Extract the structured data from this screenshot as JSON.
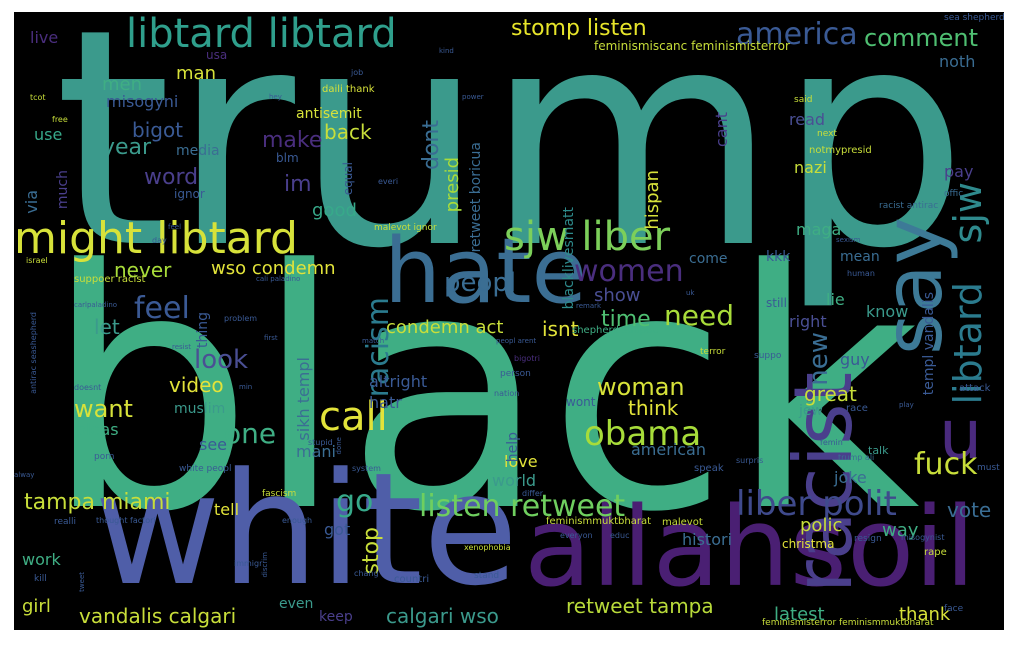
{
  "words": [
    {
      "text": "trump",
      "color": "#3b9a8c"
    },
    {
      "text": "black",
      "color": "#3fae84"
    },
    {
      "text": "white",
      "color": "#4f5ea8"
    },
    {
      "text": "allahsoil",
      "color": "#4a1f73"
    },
    {
      "text": "hate",
      "color": "#3b6e93"
    },
    {
      "text": "racist",
      "color": "#4a3f8c"
    },
    {
      "text": "say",
      "color": "#3d7a97"
    },
    {
      "text": "libtard libtard",
      "color": "#2f9f8c"
    },
    {
      "text": "libtard",
      "color": "#2b7b8e"
    },
    {
      "text": "sjw",
      "color": "#2f8a8d"
    },
    {
      "text": "u",
      "color": "#4a2a7e"
    },
    {
      "text": "might libtard",
      "color": "#d7e23a"
    },
    {
      "text": "sjw liber",
      "color": "#7ccf5a"
    },
    {
      "text": "liber polit",
      "color": "#3f4a8c"
    },
    {
      "text": "listen retweet",
      "color": "#6fcf5f"
    },
    {
      "text": "obama",
      "color": "#a7dc3a"
    },
    {
      "text": "women",
      "color": "#4a2e7e"
    },
    {
      "text": "america",
      "color": "#3a5a95"
    },
    {
      "text": "stomp listen",
      "color": "#e7e52a"
    },
    {
      "text": "comment",
      "color": "#4fbf72"
    },
    {
      "text": "call",
      "color": "#e2e33a"
    },
    {
      "text": "fuck",
      "color": "#c8de3a"
    },
    {
      "text": "go",
      "color": "#37a98a"
    },
    {
      "text": "peopl",
      "color": "#3a6d93"
    },
    {
      "text": "need",
      "color": "#a8dc3a"
    },
    {
      "text": "feel",
      "color": "#3b5a95"
    },
    {
      "text": "racism",
      "color": "#2b7b8e"
    },
    {
      "text": "woman",
      "color": "#d7e23a"
    },
    {
      "text": "one",
      "color": "#3fae84"
    },
    {
      "text": "look",
      "color": "#4a4f94"
    },
    {
      "text": "want",
      "color": "#d7e23a"
    },
    {
      "text": "tampa miami",
      "color": "#c8de3a"
    },
    {
      "text": "stop",
      "color": "#c8de3a"
    },
    {
      "text": "retweet tampa",
      "color": "#b8da3a"
    },
    {
      "text": "vandalis calgari",
      "color": "#c8de3a"
    },
    {
      "text": "calgari wso",
      "color": "#3b9a8c"
    },
    {
      "text": "latest",
      "color": "#3fae84"
    },
    {
      "text": "thank",
      "color": "#d7e23a"
    },
    {
      "text": "vote",
      "color": "#3a6d93"
    },
    {
      "text": "new",
      "color": "#3a6d93"
    },
    {
      "text": "time",
      "color": "#4fbf72"
    },
    {
      "text": "show",
      "color": "#4a4f94"
    },
    {
      "text": "condemn act",
      "color": "#c8de3a"
    },
    {
      "text": "isnt",
      "color": "#e2e33a"
    },
    {
      "text": "wso condemn",
      "color": "#e2e33a"
    },
    {
      "text": "never",
      "color": "#a8dc3a"
    },
    {
      "text": "let",
      "color": "#3b9a8c"
    },
    {
      "text": "video",
      "color": "#e2e33a"
    },
    {
      "text": "think",
      "color": "#e2e33a"
    },
    {
      "text": "great",
      "color": "#c8de3a"
    },
    {
      "text": "word",
      "color": "#4a3f8c"
    },
    {
      "text": "year",
      "color": "#3b9a8c"
    },
    {
      "text": "bigot",
      "color": "#3a5a95"
    },
    {
      "text": "make",
      "color": "#4a2e7e"
    },
    {
      "text": "im",
      "color": "#4a3f8c"
    },
    {
      "text": "back",
      "color": "#c8de3a"
    },
    {
      "text": "dont",
      "color": "#3a6d93"
    },
    {
      "text": "presid",
      "color": "#a8dc3a"
    },
    {
      "text": "hispan",
      "color": "#d7e23a"
    },
    {
      "text": "nazi",
      "color": "#c8de3a"
    },
    {
      "text": "pay",
      "color": "#4a3f8c"
    },
    {
      "text": "read",
      "color": "#4a4f94"
    },
    {
      "text": "noth",
      "color": "#3a6d93"
    },
    {
      "text": "good",
      "color": "#37a98a"
    },
    {
      "text": "via",
      "color": "#3a6d93"
    },
    {
      "text": "men",
      "color": "#3fae84"
    },
    {
      "text": "man",
      "color": "#d7e23a"
    },
    {
      "text": "misogyni",
      "color": "#3a5a95"
    },
    {
      "text": "media",
      "color": "#3b6e93"
    },
    {
      "text": "use",
      "color": "#37a98a"
    },
    {
      "text": "much",
      "color": "#4a3f8c"
    },
    {
      "text": "live",
      "color": "#4a2e7e"
    },
    {
      "text": "usa",
      "color": "#4a2e7e"
    },
    {
      "text": "cant",
      "color": "#4a3f8c"
    },
    {
      "text": "mean",
      "color": "#3a6d93"
    },
    {
      "text": "maga",
      "color": "#3fae84"
    },
    {
      "text": "kkk",
      "color": "#3a5a95"
    },
    {
      "text": "come",
      "color": "#3b6e93"
    },
    {
      "text": "lie",
      "color": "#3fae84"
    },
    {
      "text": "know",
      "color": "#3b9a8c"
    },
    {
      "text": "right",
      "color": "#4a4f94"
    },
    {
      "text": "guy",
      "color": "#3a5a95"
    },
    {
      "text": "jew",
      "color": "#3b9a8c"
    },
    {
      "text": "american",
      "color": "#3b6e93"
    },
    {
      "text": "love",
      "color": "#e2e33a"
    },
    {
      "text": "world",
      "color": "#3b9a8c"
    },
    {
      "text": "see",
      "color": "#3a5a95"
    },
    {
      "text": "pleas",
      "color": "#3fae84"
    },
    {
      "text": "mani",
      "color": "#3b6e93"
    },
    {
      "text": "tell",
      "color": "#e2e33a"
    },
    {
      "text": "got",
      "color": "#3a5a95"
    },
    {
      "text": "polic",
      "color": "#c8de3a"
    },
    {
      "text": "way",
      "color": "#3fae84"
    },
    {
      "text": "histori",
      "color": "#3b6e93"
    },
    {
      "text": "work",
      "color": "#3fae84"
    },
    {
      "text": "girl",
      "color": "#c8de3a"
    },
    {
      "text": "even",
      "color": "#3b9a8c"
    },
    {
      "text": "keep",
      "color": "#4a3f8c"
    },
    {
      "text": "joke",
      "color": "#3b6e93"
    },
    {
      "text": "help",
      "color": "#3a5a95"
    },
    {
      "text": "altright",
      "color": "#3a5a95"
    },
    {
      "text": "hatr",
      "color": "#3a5a95"
    },
    {
      "text": "sikh templ",
      "color": "#3b6e93"
    },
    {
      "text": "muslim",
      "color": "#3b9a8c"
    },
    {
      "text": "thing",
      "color": "#3a5a95"
    },
    {
      "text": "retweet boricua",
      "color": "#3a6d93"
    },
    {
      "text": "blacklivesmatt",
      "color": "#2e8b8c"
    },
    {
      "text": "templ vandalis",
      "color": "#3a5a95"
    },
    {
      "text": "antisemit",
      "color": "#d7e23a"
    },
    {
      "text": "equal",
      "color": "#3a5a95"
    },
    {
      "text": "ignor",
      "color": "#3a5a95"
    },
    {
      "text": "blm",
      "color": "#3a5a95"
    },
    {
      "text": "daili thank",
      "color": "#d7e23a"
    },
    {
      "text": "feminismiscanc feminismisterror",
      "color": "#c8de3a"
    },
    {
      "text": "malevot ignor",
      "color": "#c8de3a"
    },
    {
      "text": "suppoer racist",
      "color": "#c8de3a"
    },
    {
      "text": "israel",
      "color": "#c8de3a"
    },
    {
      "text": "notmypresid",
      "color": "#c8de3a"
    },
    {
      "text": "racist antirac",
      "color": "#3a6d93"
    },
    {
      "text": "sea shepherd",
      "color": "#3a5a95"
    },
    {
      "text": "offic",
      "color": "#3a6d93"
    },
    {
      "text": "next",
      "color": "#c8de3a"
    },
    {
      "text": "said",
      "color": "#c8de3a"
    },
    {
      "text": "human",
      "color": "#3a5a95"
    },
    {
      "text": "attack",
      "color": "#3a5a95"
    },
    {
      "text": "still",
      "color": "#3a5a95"
    },
    {
      "text": "suppo",
      "color": "#3a5a95"
    },
    {
      "text": "terror",
      "color": "#c8de3a"
    },
    {
      "text": "shepherd suppoer",
      "color": "#3fae84"
    },
    {
      "text": "person",
      "color": "#3a5a95"
    },
    {
      "text": "nation",
      "color": "#3a5a95"
    },
    {
      "text": "wont",
      "color": "#3a5a95"
    },
    {
      "text": "race",
      "color": "#3a5a95"
    },
    {
      "text": "speak",
      "color": "#3a5a95"
    },
    {
      "text": "surpris",
      "color": "#3a5a95"
    },
    {
      "text": "talk",
      "color": "#3b9a8c"
    },
    {
      "text": "trump ali",
      "color": "#3a6d93"
    },
    {
      "text": "femin",
      "color": "#3a5a95"
    },
    {
      "text": "must",
      "color": "#3a5a95"
    },
    {
      "text": "fascism",
      "color": "#c8de3a"
    },
    {
      "text": "feminismmuktbharat",
      "color": "#c8de3a"
    },
    {
      "text": "malevot",
      "color": "#c8de3a"
    },
    {
      "text": "everyon",
      "color": "#3a5a95"
    },
    {
      "text": "educ",
      "color": "#3a5a95"
    },
    {
      "text": "christma",
      "color": "#e2e33a"
    },
    {
      "text": "resign",
      "color": "#3a5a95"
    },
    {
      "text": "misogynist",
      "color": "#3a5a95"
    },
    {
      "text": "xenophobia",
      "color": "#c8de3a"
    },
    {
      "text": "rape",
      "color": "#c8de3a"
    },
    {
      "text": "face",
      "color": "#3a5a95"
    },
    {
      "text": "feminismisterror feminismmuktbharat",
      "color": "#c8de3a"
    },
    {
      "text": "countri",
      "color": "#3a5a95"
    },
    {
      "text": "stand",
      "color": "#3a5a95"
    },
    {
      "text": "cali paladino",
      "color": "#3a5a95"
    },
    {
      "text": "carlpaladino",
      "color": "#3a5a95"
    },
    {
      "text": "realli",
      "color": "#3a5a95"
    },
    {
      "text": "thought factori",
      "color": "#3a5a95"
    },
    {
      "text": "porn",
      "color": "#3a5a95"
    },
    {
      "text": "white peopl",
      "color": "#3a5a95"
    },
    {
      "text": "antirac seashepherd",
      "color": "#3a5a95"
    },
    {
      "text": "kill",
      "color": "#3a5a95"
    },
    {
      "text": "tcot",
      "color": "#c8de3a"
    },
    {
      "text": "free",
      "color": "#c8de3a"
    },
    {
      "text": "job",
      "color": "#3a5a95"
    },
    {
      "text": "kind",
      "color": "#3a5a95"
    },
    {
      "text": "hey",
      "color": "#3a5a95"
    },
    {
      "text": "power",
      "color": "#3a5a95"
    },
    {
      "text": "everi",
      "color": "#3a5a95"
    },
    {
      "text": "enough",
      "color": "#3a5a95"
    },
    {
      "text": "differ",
      "color": "#3a5a95"
    },
    {
      "text": "stupid",
      "color": "#3a5a95"
    },
    {
      "text": "system",
      "color": "#3a5a95"
    },
    {
      "text": "day",
      "color": "#3a5a95"
    },
    {
      "text": "feel",
      "color": "#3a5a95"
    },
    {
      "text": "problem",
      "color": "#3a5a95"
    },
    {
      "text": "first",
      "color": "#3a5a95"
    },
    {
      "text": "bigotri",
      "color": "#4a2e7e"
    },
    {
      "text": "peopl arent",
      "color": "#3a5a95"
    },
    {
      "text": "remark",
      "color": "#3a5a95"
    },
    {
      "text": "uk",
      "color": "#3a5a95"
    },
    {
      "text": "match",
      "color": "#3a5a95"
    },
    {
      "text": "doesnt",
      "color": "#3a5a95"
    },
    {
      "text": "resist",
      "color": "#3a5a95"
    },
    {
      "text": "min",
      "color": "#3a5a95"
    },
    {
      "text": "immigr",
      "color": "#3a5a95"
    },
    {
      "text": "chang",
      "color": "#3a5a95"
    },
    {
      "text": "discrim",
      "color": "#3a5a95"
    },
    {
      "text": "tweet",
      "color": "#3a5a95"
    },
    {
      "text": "alway",
      "color": "#3a5a95"
    },
    {
      "text": "play",
      "color": "#3a5a95"
    },
    {
      "text": "done",
      "color": "#3a5a95"
    },
    {
      "text": "sexism",
      "color": "#3a5a95"
    }
  ]
}
